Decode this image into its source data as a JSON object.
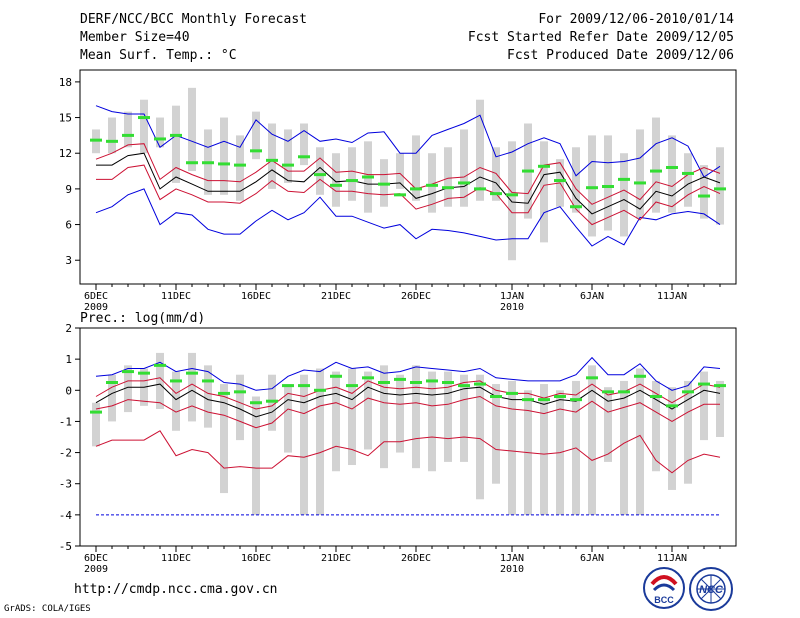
{
  "header": {
    "title": "DERF/NCC/BCC Monthly Forecast",
    "member_size": "Member Size=40",
    "variable": "Mean Surf. Temp.: °C",
    "period": "For 2009/12/06-2010/01/14",
    "start_date": "Fcst Started Refer Date 2009/12/05",
    "produced_date": "Fcst Produced Date 2009/12/06"
  },
  "footer": {
    "url": "http://cmdp.ncc.cma.gov.cn",
    "credit": "GrADS: COLA/IGES",
    "logo_left_label": "BCC",
    "logo_right_label": "NCC"
  },
  "colors": {
    "spread": "#d2d2d2",
    "green": "#33dd33",
    "mean": "#000000",
    "red": "#cc1133",
    "blue": "#0000dd"
  },
  "chart_data": [
    {
      "type": "box",
      "title": "Mean Surf. Temp.: °C",
      "ylim": [
        1,
        19
      ],
      "yticks": [
        "3",
        "6",
        "9",
        "12",
        "15",
        "18"
      ],
      "xticks": [
        {
          "label": "6DEC",
          "sub": "2009",
          "day": 0
        },
        {
          "label": "11DEC",
          "sub": "",
          "day": 5
        },
        {
          "label": "16DEC",
          "sub": "",
          "day": 10
        },
        {
          "label": "21DEC",
          "sub": "",
          "day": 15
        },
        {
          "label": "26DEC",
          "sub": "",
          "day": 20
        },
        {
          "label": "1JAN",
          "sub": "2010",
          "day": 26
        },
        {
          "label": "6JAN",
          "sub": "",
          "day": 31
        },
        {
          "label": "11JAN",
          "sub": "",
          "day": 36
        }
      ],
      "days": 40,
      "spread_low": [
        12.0,
        12.0,
        12.5,
        12.0,
        12.5,
        9.5,
        10.5,
        8.5,
        8.5,
        8.0,
        11.5,
        9.0,
        9.5,
        11.0,
        8.5,
        7.5,
        8.0,
        7.0,
        7.5,
        9.0,
        8.0,
        7.0,
        7.5,
        7.5,
        8.0,
        8.0,
        3.0,
        6.5,
        4.5,
        7.5,
        7.0,
        5.0,
        5.5,
        5.0,
        6.5,
        7.0,
        7.0,
        7.5,
        6.5,
        6.0
      ],
      "spread_high": [
        14.0,
        15.0,
        15.5,
        16.5,
        15.0,
        16.0,
        17.5,
        14.0,
        15.0,
        13.5,
        15.5,
        14.5,
        14.0,
        14.5,
        12.5,
        12.0,
        12.5,
        13.0,
        11.5,
        12.0,
        13.5,
        12.0,
        12.5,
        14.0,
        16.5,
        12.5,
        13.0,
        14.5,
        13.0,
        11.5,
        12.5,
        13.5,
        13.5,
        12.0,
        14.0,
        15.0,
        13.5,
        12.0,
        11.0,
        12.5
      ],
      "green": [
        13.1,
        13.0,
        13.5,
        15.0,
        13.2,
        13.5,
        11.2,
        11.2,
        11.1,
        11.0,
        12.2,
        11.4,
        11.0,
        11.7,
        10.2,
        9.3,
        9.7,
        10.0,
        9.4,
        8.5,
        9.0,
        9.3,
        9.1,
        9.5,
        9.0,
        8.6,
        8.5,
        10.5,
        10.9,
        9.7,
        7.5,
        9.1,
        9.2,
        9.8,
        9.5,
        10.5,
        10.8,
        10.3,
        8.4,
        9.0
      ],
      "mean": [
        11.0,
        11.0,
        11.8,
        12.0,
        9.0,
        10.0,
        9.4,
        8.8,
        8.8,
        8.8,
        9.6,
        10.6,
        9.7,
        9.6,
        10.8,
        9.6,
        9.7,
        9.4,
        9.4,
        9.5,
        8.2,
        8.6,
        9.1,
        9.2,
        10.0,
        9.5,
        7.9,
        7.8,
        10.2,
        10.4,
        8.2,
        6.9,
        7.5,
        8.1,
        7.3,
        8.8,
        8.4,
        9.4,
        10.0,
        9.5
      ],
      "red_high": [
        11.5,
        12.0,
        12.7,
        12.8,
        9.8,
        10.8,
        10.2,
        9.7,
        9.7,
        9.6,
        10.4,
        11.4,
        10.5,
        10.5,
        11.6,
        10.4,
        10.5,
        10.2,
        10.2,
        10.3,
        9.0,
        9.4,
        9.9,
        10.0,
        10.8,
        10.3,
        8.7,
        8.6,
        11.0,
        11.2,
        9.0,
        7.7,
        8.3,
        8.9,
        8.1,
        9.6,
        9.2,
        10.2,
        10.8,
        10.3
      ],
      "red_low": [
        9.8,
        9.8,
        10.8,
        11.0,
        8.1,
        9.0,
        8.5,
        7.9,
        7.9,
        7.8,
        8.6,
        9.7,
        8.8,
        8.7,
        9.8,
        8.8,
        8.8,
        8.6,
        8.5,
        8.6,
        7.3,
        7.7,
        8.2,
        8.3,
        9.1,
        8.6,
        7.0,
        7.0,
        9.3,
        9.5,
        7.3,
        6.0,
        6.6,
        7.2,
        6.4,
        7.9,
        7.5,
        8.5,
        9.2,
        8.6
      ],
      "blue_high": [
        16.0,
        15.5,
        15.3,
        15.3,
        12.5,
        13.5,
        13.0,
        12.5,
        13.0,
        12.5,
        14.8,
        13.6,
        13.0,
        13.9,
        13.0,
        13.2,
        12.9,
        13.7,
        13.8,
        12.0,
        12.0,
        13.5,
        14.0,
        14.5,
        15.2,
        11.7,
        12.1,
        12.8,
        13.3,
        12.8,
        10.1,
        11.3,
        11.2,
        11.3,
        11.6,
        12.8,
        13.3,
        12.6,
        10.0,
        10.9
      ],
      "blue_low": [
        7.0,
        7.5,
        8.5,
        9.0,
        6.0,
        7.0,
        6.8,
        5.6,
        5.2,
        5.2,
        6.3,
        7.2,
        6.4,
        7.0,
        8.3,
        6.7,
        6.7,
        6.2,
        5.7,
        6.0,
        4.8,
        5.6,
        5.5,
        5.3,
        5.0,
        4.7,
        4.8,
        4.8,
        7.0,
        7.5,
        5.8,
        4.2,
        5.0,
        4.3,
        6.6,
        6.4,
        6.9,
        7.1,
        6.9,
        6.0
      ]
    },
    {
      "type": "box",
      "title": "Prec.: log(mm/d)",
      "ylim": [
        -5,
        2
      ],
      "yticks": [
        "-5",
        "-4",
        "-3",
        "-2",
        "-1",
        "0",
        "1",
        "2"
      ],
      "xticks": [
        {
          "label": "6DEC",
          "sub": "2009",
          "day": 0
        },
        {
          "label": "11DEC",
          "sub": "",
          "day": 5
        },
        {
          "label": "16DEC",
          "sub": "",
          "day": 10
        },
        {
          "label": "21DEC",
          "sub": "",
          "day": 15
        },
        {
          "label": "26DEC",
          "sub": "",
          "day": 20
        },
        {
          "label": "1JAN",
          "sub": "2010",
          "day": 26
        },
        {
          "label": "6JAN",
          "sub": "",
          "day": 31
        },
        {
          "label": "11JAN",
          "sub": "",
          "day": 36
        }
      ],
      "days": 40,
      "floor": -4,
      "spread_low": [
        -1.8,
        -1.0,
        -0.7,
        -0.5,
        -0.6,
        -1.3,
        -1.0,
        -1.2,
        -3.3,
        -1.6,
        -4.0,
        -1.3,
        -2.0,
        -4.0,
        -4.0,
        -2.6,
        -2.4,
        -1.9,
        -2.5,
        -2.0,
        -2.5,
        -2.6,
        -2.3,
        -2.3,
        -3.5,
        -3.0,
        -4.0,
        -4.0,
        -4.0,
        -4.0,
        -4.0,
        -4.0,
        -2.3,
        -4.0,
        -4.0,
        -2.6,
        -3.2,
        -3.0,
        -1.6,
        -1.5
      ],
      "spread_high": [
        -0.4,
        0.5,
        0.8,
        0.7,
        1.2,
        0.6,
        1.2,
        0.8,
        0.2,
        0.5,
        -0.2,
        0.5,
        0.2,
        0.5,
        0.7,
        0.6,
        0.7,
        0.6,
        0.8,
        0.5,
        0.8,
        0.6,
        0.6,
        0.5,
        0.5,
        0.2,
        0.3,
        0.0,
        0.2,
        0.0,
        0.3,
        0.8,
        0.1,
        0.3,
        0.7,
        0.3,
        0.1,
        0.3,
        0.6,
        0.3
      ],
      "green": [
        -0.7,
        0.25,
        0.6,
        0.55,
        0.8,
        0.3,
        0.55,
        0.3,
        -0.1,
        -0.05,
        -0.4,
        -0.35,
        0.15,
        0.15,
        0.0,
        0.45,
        0.15,
        0.4,
        0.25,
        0.35,
        0.25,
        0.3,
        0.25,
        0.15,
        0.2,
        -0.2,
        -0.1,
        -0.3,
        -0.3,
        -0.2,
        -0.3,
        0.4,
        -0.05,
        -0.05,
        0.45,
        -0.2,
        -0.5,
        -0.05,
        0.2,
        0.15
      ],
      "mean": [
        -0.4,
        -0.1,
        0.1,
        0.1,
        0.2,
        -0.3,
        0.0,
        -0.3,
        -0.4,
        -0.6,
        -0.85,
        -0.7,
        -0.3,
        -0.4,
        -0.2,
        -0.1,
        -0.3,
        0.1,
        -0.1,
        -0.15,
        -0.1,
        -0.15,
        -0.1,
        0.05,
        0.1,
        -0.2,
        -0.3,
        -0.3,
        -0.45,
        -0.3,
        -0.35,
        0.0,
        -0.35,
        -0.25,
        0.0,
        -0.3,
        -0.6,
        -0.3,
        0.0,
        -0.1
      ],
      "red_high": [
        -0.2,
        0.1,
        0.3,
        0.3,
        0.4,
        -0.1,
        0.2,
        -0.1,
        -0.2,
        -0.4,
        -0.6,
        -0.5,
        -0.1,
        -0.2,
        0.0,
        0.1,
        -0.1,
        0.3,
        0.1,
        0.05,
        0.1,
        0.05,
        0.1,
        0.25,
        0.3,
        0.0,
        -0.1,
        -0.1,
        -0.25,
        -0.1,
        -0.15,
        0.2,
        -0.15,
        -0.05,
        0.2,
        -0.1,
        -0.4,
        -0.1,
        0.2,
        0.1
      ],
      "red_low": [
        -0.6,
        -0.5,
        -0.3,
        -0.35,
        -0.4,
        -0.7,
        -0.5,
        -0.7,
        -0.8,
        -1.0,
        -1.2,
        -1.05,
        -0.6,
        -0.75,
        -0.5,
        -0.4,
        -0.6,
        -0.25,
        -0.4,
        -0.45,
        -0.4,
        -0.5,
        -0.45,
        -0.3,
        -0.2,
        -0.5,
        -0.6,
        -0.65,
        -0.75,
        -0.6,
        -0.7,
        -0.35,
        -0.7,
        -0.55,
        -0.4,
        -0.7,
        -1.0,
        -0.7,
        -0.45,
        -0.45
      ],
      "red_min": [
        -1.8,
        -1.6,
        -1.6,
        -1.6,
        -1.3,
        -2.1,
        -1.9,
        -2.0,
        -2.5,
        -2.45,
        -2.5,
        -2.5,
        -2.1,
        -2.15,
        -2.0,
        -1.8,
        -1.9,
        -2.1,
        -1.65,
        -1.65,
        -1.55,
        -1.5,
        -1.55,
        -1.5,
        -1.55,
        -1.9,
        -1.95,
        -2.0,
        -2.05,
        -2.0,
        -1.85,
        -2.25,
        -2.05,
        -1.7,
        -1.45,
        -2.25,
        -2.65,
        -2.25,
        -2.05,
        -2.15
      ],
      "blue_high": [
        0.45,
        0.5,
        0.7,
        0.7,
        0.9,
        0.6,
        0.7,
        0.6,
        0.25,
        0.2,
        0.0,
        0.05,
        0.45,
        0.65,
        0.6,
        0.9,
        0.7,
        0.75,
        0.55,
        0.6,
        0.75,
        0.7,
        0.65,
        0.6,
        0.7,
        0.4,
        0.35,
        0.3,
        0.3,
        0.3,
        0.5,
        1.05,
        0.5,
        0.5,
        0.85,
        0.3,
        0.0,
        0.15,
        0.75,
        0.7
      ]
    }
  ]
}
